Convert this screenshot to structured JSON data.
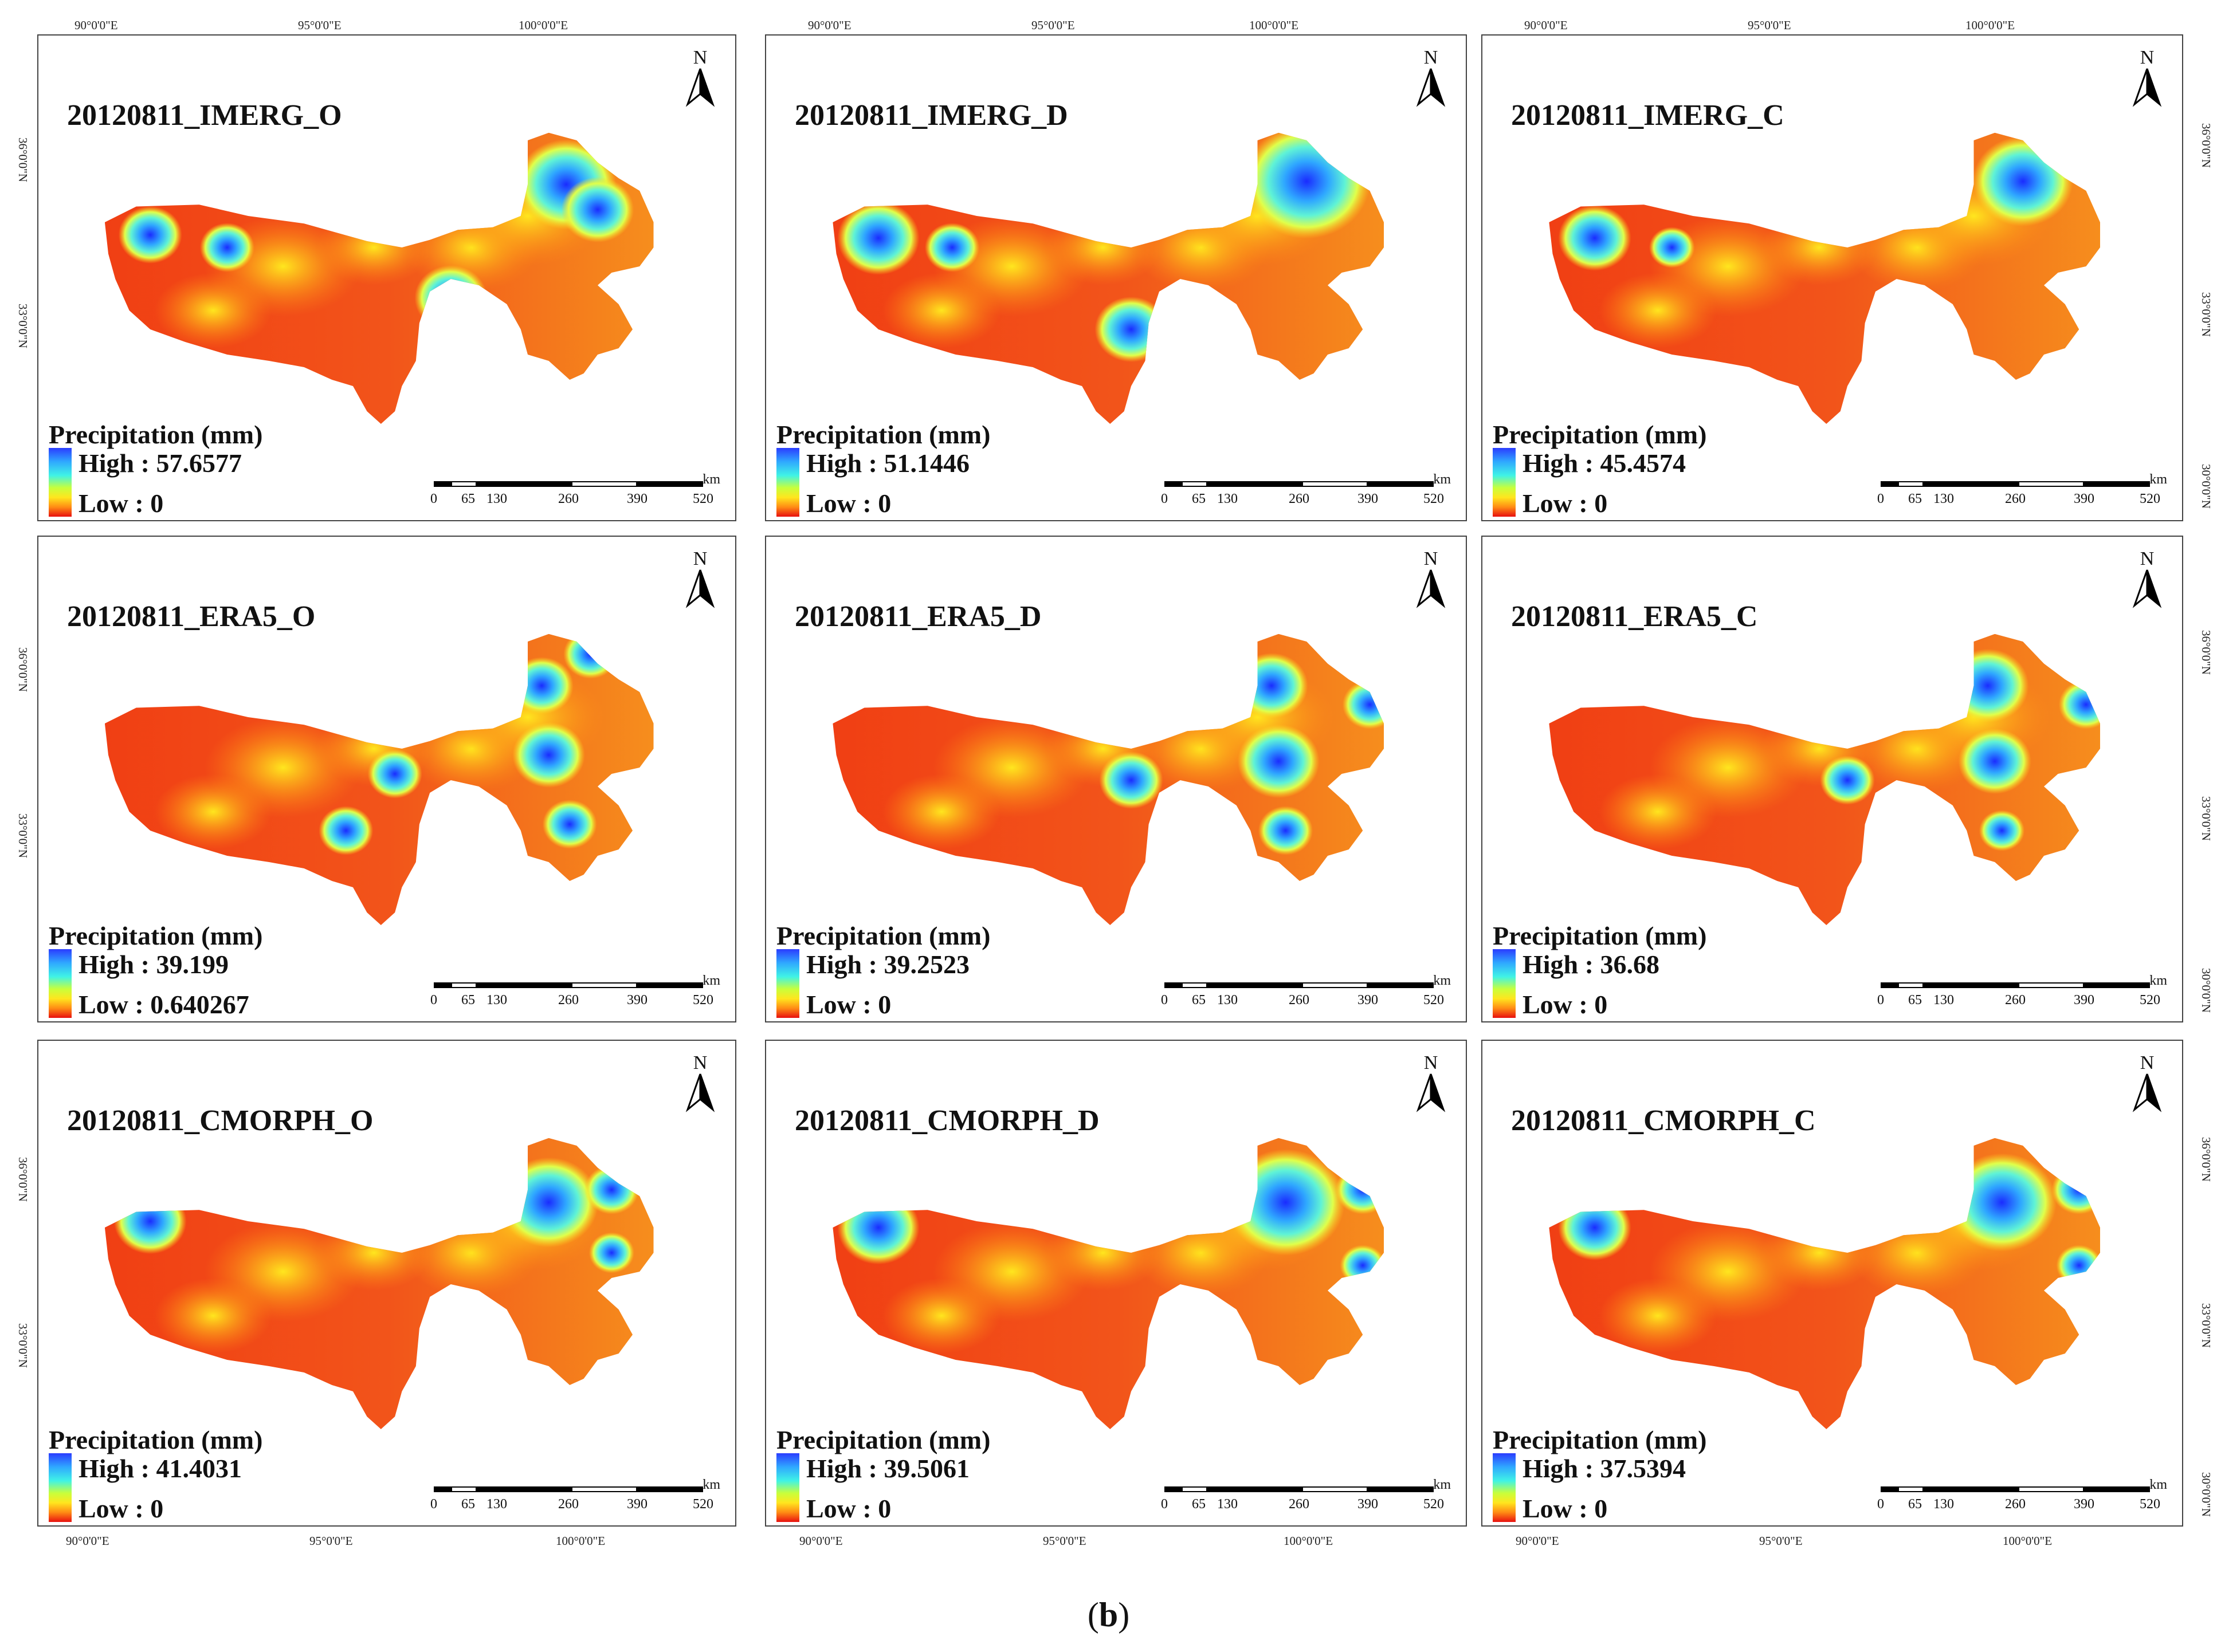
{
  "caption": {
    "open": "(",
    "label": "b",
    "close": ")"
  },
  "grid": {
    "lon_labels": [
      "90°0'0\"E",
      "95°0'0\"E",
      "100°0'0\"E"
    ],
    "lat_labels": [
      "36°0'0\"N",
      "33°0'0\"N",
      "30°0'0\"N"
    ]
  },
  "colors": {
    "high": "#2b3cff",
    "mid": "#ffe61e",
    "low": "#e81010"
  },
  "legend_title": "Precipitation (mm)",
  "north_letter": "N",
  "scale": {
    "unit": "km",
    "ticks": [
      "0",
      "65",
      "130",
      "260",
      "390",
      "520"
    ]
  },
  "panels": [
    {
      "title": "20120811_IMERG_O",
      "high": "High : 57.6577",
      "low": "Low : 0"
    },
    {
      "title": "20120811_IMERG_D",
      "high": "High : 51.1446",
      "low": "Low : 0"
    },
    {
      "title": "20120811_IMERG_C",
      "high": "High : 45.4574",
      "low": "Low : 0"
    },
    {
      "title": "20120811_ERA5_O",
      "high": "High : 39.199",
      "low": "Low : 0.640267"
    },
    {
      "title": "20120811_ERA5_D",
      "high": "High : 39.2523",
      "low": "Low : 0"
    },
    {
      "title": "20120811_ERA5_C",
      "high": "High : 36.68",
      "low": "Low : 0"
    },
    {
      "title": "20120811_CMORPH_O",
      "high": "High : 41.4031",
      "low": "Low : 0"
    },
    {
      "title": "20120811_CMORPH_D",
      "high": "High : 39.5061",
      "low": "Low : 0"
    },
    {
      "title": "20120811_CMORPH_C",
      "high": "High : 37.5394",
      "low": "Low : 0"
    }
  ]
}
